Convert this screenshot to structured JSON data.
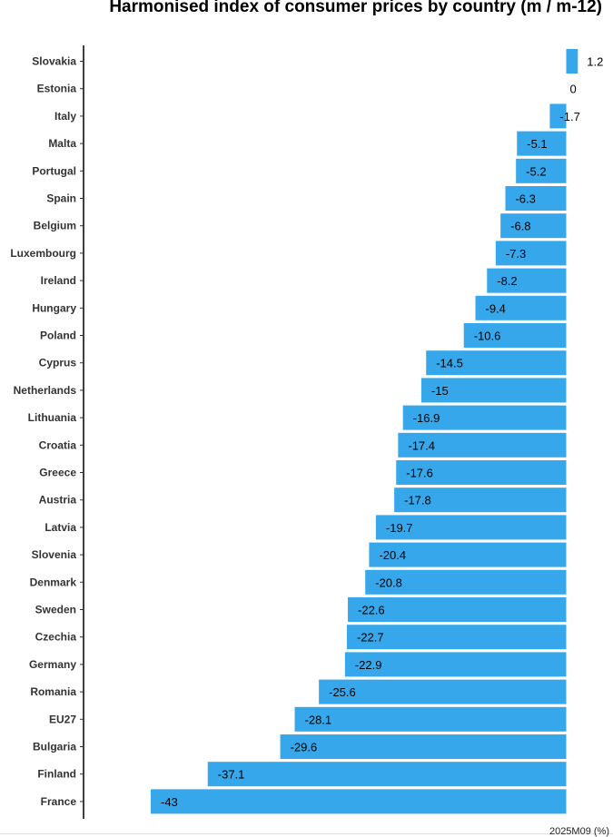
{
  "chart_data": {
    "type": "bar",
    "orientation": "horizontal",
    "title": "Harmonised index of consumer prices by country (m / m-12)",
    "note": "2025M09 (%)",
    "bar_color": "#35a7ea",
    "categories": [
      "Slovakia",
      "Estonia",
      "Italy",
      "Malta",
      "Portugal",
      "Spain",
      "Belgium",
      "Luxembourg",
      "Ireland",
      "Hungary",
      "Poland",
      "Cyprus",
      "Netherlands",
      "Lithuania",
      "Croatia",
      "Greece",
      "Austria",
      "Latvia",
      "Slovenia",
      "Denmark",
      "Sweden",
      "Czechia",
      "Germany",
      "Romania",
      "EU27",
      "Bulgaria",
      "Finland",
      "France"
    ],
    "values": [
      1.2,
      0,
      -1.7,
      -5.1,
      -5.2,
      -6.3,
      -6.8,
      -7.3,
      -8.2,
      -9.4,
      -10.6,
      -14.5,
      -15,
      -16.9,
      -17.4,
      -17.6,
      -17.8,
      -19.7,
      -20.4,
      -20.8,
      -22.6,
      -22.7,
      -22.9,
      -25.6,
      -28.1,
      -29.6,
      -37.1,
      -43
    ],
    "value_labels": [
      "1.2",
      "0",
      "-1.7",
      "-5.1",
      "-5.2",
      "-6.3",
      "-6.8",
      "-7.3",
      "-8.2",
      "-9.4",
      "-10.6",
      "-14.5",
      "-15",
      "-16.9",
      "-17.4",
      "-17.6",
      "-17.8",
      "-19.7",
      "-20.4",
      "-20.8",
      "-22.6",
      "-22.7",
      "-22.9",
      "-25.6",
      "-28.1",
      "-29.6",
      "-37.1",
      "-43"
    ],
    "xlim": [
      -43,
      1.2
    ]
  }
}
